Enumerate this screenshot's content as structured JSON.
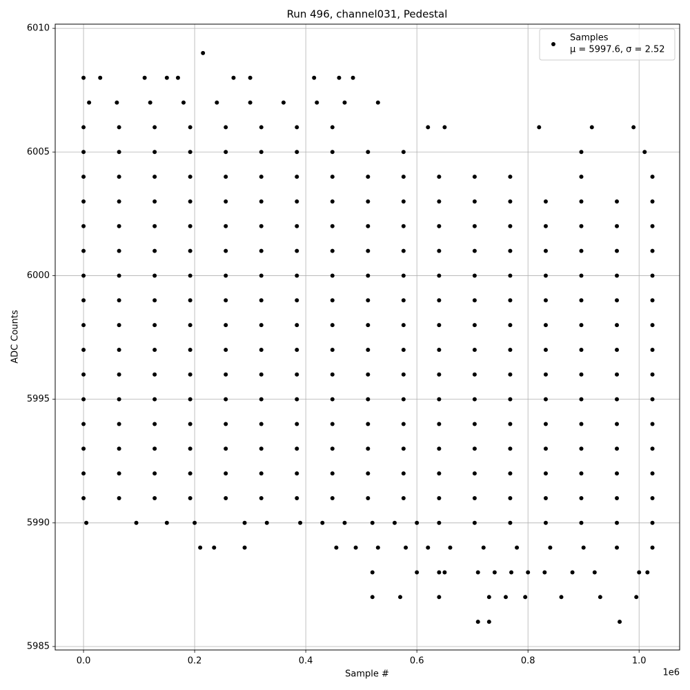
{
  "chart_data": {
    "type": "scatter",
    "title": "Run 496, channel031, Pedestal",
    "xlabel": "Sample #",
    "ylabel": "ADC Counts",
    "x_offset_label": "1e6",
    "xlim": [
      -51000,
      1073000
    ],
    "ylim": [
      5984.86,
      6010.17
    ],
    "xticks": [
      {
        "value": 0,
        "label": "0.0"
      },
      {
        "value": 200000,
        "label": "0.2"
      },
      {
        "value": 400000,
        "label": "0.4"
      },
      {
        "value": 600000,
        "label": "0.6"
      },
      {
        "value": 800000,
        "label": "0.8"
      },
      {
        "value": 1000000,
        "label": "1.0"
      }
    ],
    "yticks": [
      5985,
      5990,
      5995,
      6000,
      6005,
      6010
    ],
    "grid": true,
    "legend_position": "upper right",
    "legend_note": "μ = 5997.6, σ = 2.52",
    "series": [
      {
        "name": "Samples",
        "color": "#000000",
        "x": [
          215000,
          0,
          30000,
          110000,
          150000,
          170000,
          270000,
          300000,
          415000,
          460000,
          485000,
          10000,
          60000,
          120000,
          180000,
          240000,
          300000,
          360000,
          420000,
          470000,
          530000,
          0,
          64000,
          128000,
          192000,
          256000,
          320000,
          384000,
          448000,
          620000,
          650000,
          820000,
          915000,
          990000,
          0,
          64000,
          128000,
          192000,
          256000,
          320000,
          384000,
          448000,
          512000,
          576000,
          896000,
          1010000,
          0,
          64000,
          128000,
          192000,
          256000,
          320000,
          384000,
          448000,
          512000,
          576000,
          640000,
          704000,
          768000,
          896000,
          1024000,
          0,
          64000,
          128000,
          192000,
          256000,
          320000,
          384000,
          448000,
          512000,
          576000,
          640000,
          704000,
          768000,
          832000,
          896000,
          960000,
          1024000,
          0,
          64000,
          128000,
          192000,
          256000,
          320000,
          384000,
          448000,
          512000,
          576000,
          640000,
          704000,
          768000,
          832000,
          896000,
          960000,
          1024000,
          0,
          64000,
          128000,
          192000,
          256000,
          320000,
          384000,
          448000,
          512000,
          576000,
          640000,
          704000,
          768000,
          832000,
          896000,
          960000,
          1024000,
          0,
          64000,
          128000,
          192000,
          256000,
          320000,
          384000,
          448000,
          512000,
          576000,
          640000,
          704000,
          768000,
          832000,
          896000,
          960000,
          1024000,
          0,
          64000,
          128000,
          192000,
          256000,
          320000,
          384000,
          448000,
          512000,
          576000,
          640000,
          704000,
          768000,
          832000,
          896000,
          960000,
          1024000,
          0,
          64000,
          128000,
          192000,
          256000,
          320000,
          384000,
          448000,
          512000,
          576000,
          640000,
          704000,
          768000,
          832000,
          896000,
          960000,
          1024000,
          0,
          64000,
          128000,
          192000,
          256000,
          320000,
          384000,
          448000,
          512000,
          576000,
          640000,
          704000,
          768000,
          832000,
          896000,
          960000,
          1024000,
          0,
          64000,
          128000,
          192000,
          256000,
          320000,
          384000,
          448000,
          512000,
          576000,
          640000,
          704000,
          768000,
          832000,
          896000,
          960000,
          1024000,
          0,
          64000,
          128000,
          192000,
          256000,
          320000,
          384000,
          448000,
          512000,
          576000,
          640000,
          704000,
          768000,
          832000,
          896000,
          960000,
          1024000,
          0,
          64000,
          128000,
          192000,
          256000,
          320000,
          384000,
          448000,
          512000,
          576000,
          640000,
          704000,
          768000,
          832000,
          896000,
          960000,
          1024000,
          0,
          64000,
          128000,
          192000,
          256000,
          320000,
          384000,
          448000,
          512000,
          576000,
          640000,
          704000,
          768000,
          832000,
          896000,
          960000,
          1024000,
          0,
          64000,
          128000,
          192000,
          256000,
          320000,
          384000,
          448000,
          512000,
          576000,
          640000,
          704000,
          768000,
          832000,
          896000,
          960000,
          1024000,
          0,
          64000,
          128000,
          192000,
          256000,
          320000,
          384000,
          448000,
          512000,
          576000,
          640000,
          704000,
          768000,
          832000,
          896000,
          960000,
          1024000,
          5000,
          95000,
          150000,
          200000,
          290000,
          330000,
          390000,
          430000,
          470000,
          520000,
          560000,
          600000,
          640000,
          704000,
          768000,
          832000,
          896000,
          960000,
          1024000,
          210000,
          235000,
          290000,
          455000,
          490000,
          530000,
          580000,
          620000,
          660000,
          720000,
          780000,
          840000,
          900000,
          960000,
          1024000,
          520000,
          600000,
          640000,
          650000,
          710000,
          740000,
          770000,
          800000,
          830000,
          880000,
          920000,
          1000000,
          1015000,
          520000,
          570000,
          640000,
          730000,
          760000,
          795000,
          860000,
          930000,
          995000,
          710000,
          730000,
          965000
        ],
        "values": [
          6009,
          6008,
          6008,
          6008,
          6008,
          6008,
          6008,
          6008,
          6008,
          6008,
          6008,
          6007,
          6007,
          6007,
          6007,
          6007,
          6007,
          6007,
          6007,
          6007,
          6007,
          6006,
          6006,
          6006,
          6006,
          6006,
          6006,
          6006,
          6006,
          6006,
          6006,
          6006,
          6006,
          6006,
          6005,
          6005,
          6005,
          6005,
          6005,
          6005,
          6005,
          6005,
          6005,
          6005,
          6005,
          6005,
          6004,
          6004,
          6004,
          6004,
          6004,
          6004,
          6004,
          6004,
          6004,
          6004,
          6004,
          6004,
          6004,
          6004,
          6004,
          6003,
          6003,
          6003,
          6003,
          6003,
          6003,
          6003,
          6003,
          6003,
          6003,
          6003,
          6003,
          6003,
          6003,
          6003,
          6003,
          6003,
          6002,
          6002,
          6002,
          6002,
          6002,
          6002,
          6002,
          6002,
          6002,
          6002,
          6002,
          6002,
          6002,
          6002,
          6002,
          6002,
          6002,
          6001,
          6001,
          6001,
          6001,
          6001,
          6001,
          6001,
          6001,
          6001,
          6001,
          6001,
          6001,
          6001,
          6001,
          6001,
          6001,
          6001,
          6000,
          6000,
          6000,
          6000,
          6000,
          6000,
          6000,
          6000,
          6000,
          6000,
          6000,
          6000,
          6000,
          6000,
          6000,
          6000,
          6000,
          5999,
          5999,
          5999,
          5999,
          5999,
          5999,
          5999,
          5999,
          5999,
          5999,
          5999,
          5999,
          5999,
          5999,
          5999,
          5999,
          5999,
          5998,
          5998,
          5998,
          5998,
          5998,
          5998,
          5998,
          5998,
          5998,
          5998,
          5998,
          5998,
          5998,
          5998,
          5998,
          5998,
          5998,
          5997,
          5997,
          5997,
          5997,
          5997,
          5997,
          5997,
          5997,
          5997,
          5997,
          5997,
          5997,
          5997,
          5997,
          5997,
          5997,
          5997,
          5996,
          5996,
          5996,
          5996,
          5996,
          5996,
          5996,
          5996,
          5996,
          5996,
          5996,
          5996,
          5996,
          5996,
          5996,
          5996,
          5996,
          5995,
          5995,
          5995,
          5995,
          5995,
          5995,
          5995,
          5995,
          5995,
          5995,
          5995,
          5995,
          5995,
          5995,
          5995,
          5995,
          5995,
          5994,
          5994,
          5994,
          5994,
          5994,
          5994,
          5994,
          5994,
          5994,
          5994,
          5994,
          5994,
          5994,
          5994,
          5994,
          5994,
          5994,
          5993,
          5993,
          5993,
          5993,
          5993,
          5993,
          5993,
          5993,
          5993,
          5993,
          5993,
          5993,
          5993,
          5993,
          5993,
          5993,
          5993,
          5992,
          5992,
          5992,
          5992,
          5992,
          5992,
          5992,
          5992,
          5992,
          5992,
          5992,
          5992,
          5992,
          5992,
          5992,
          5992,
          5992,
          5991,
          5991,
          5991,
          5991,
          5991,
          5991,
          5991,
          5991,
          5991,
          5991,
          5991,
          5991,
          5991,
          5991,
          5991,
          5991,
          5991,
          5990,
          5990,
          5990,
          5990,
          5990,
          5990,
          5990,
          5990,
          5990,
          5990,
          5990,
          5990,
          5990,
          5990,
          5990,
          5990,
          5990,
          5990,
          5990,
          5989,
          5989,
          5989,
          5989,
          5989,
          5989,
          5989,
          5989,
          5989,
          5989,
          5989,
          5989,
          5989,
          5989,
          5989,
          5988,
          5988,
          5988,
          5988,
          5988,
          5988,
          5988,
          5988,
          5988,
          5988,
          5988,
          5988,
          5988,
          5987,
          5987,
          5987,
          5987,
          5987,
          5987,
          5987,
          5987,
          5987,
          5986,
          5986,
          5986
        ]
      }
    ]
  }
}
